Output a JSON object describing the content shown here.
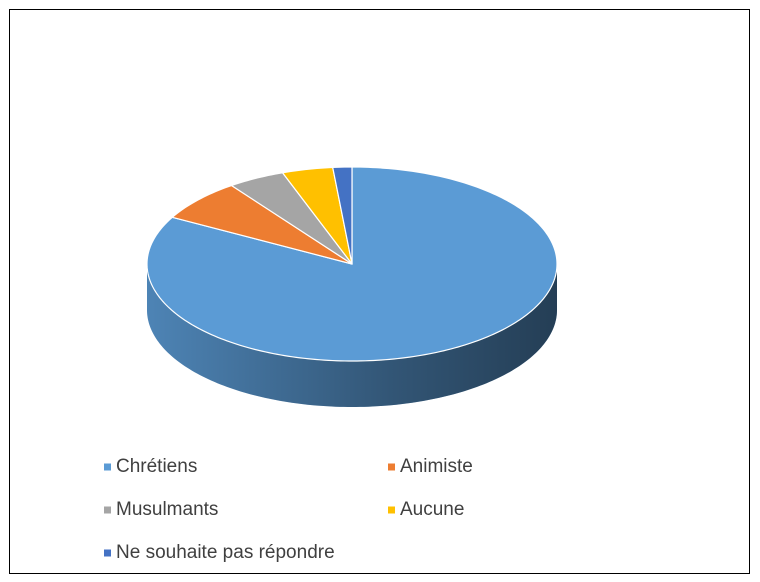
{
  "chart_data": {
    "type": "pie",
    "categories": [
      "Chrétiens",
      "Animiste",
      "Musulmants",
      "Aucune",
      "Ne souhaite pas répondre"
    ],
    "values": [
      83,
      7,
      4.5,
      4,
      1.5
    ],
    "colors": [
      "#5b9bd5",
      "#ed7d31",
      "#a5a5a5",
      "#ffc000",
      "#4472c4"
    ],
    "legend": "bottom"
  }
}
